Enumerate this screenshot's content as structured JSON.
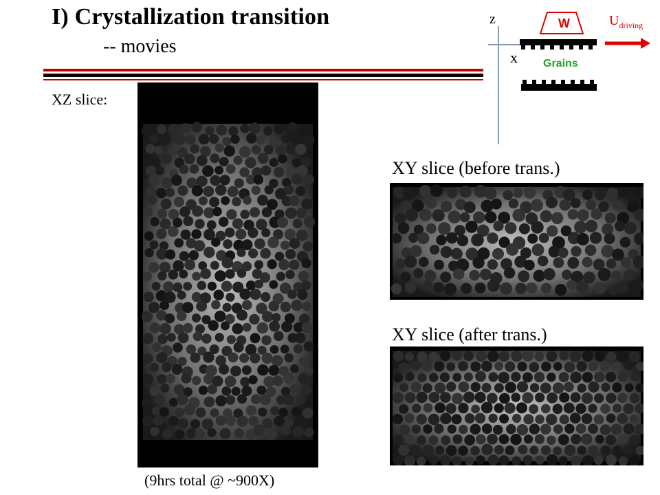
{
  "slide": {
    "title": "I) Crystallization transition",
    "subtitle": "-- movies",
    "xz_label": "XZ slice:",
    "xy_before_label": "XY slice (before trans.)",
    "xy_after_label": "XY slice (after trans.)",
    "footnote": "(9hrs total @ ~900X)"
  },
  "schematic": {
    "z_axis": "z",
    "x_axis": "x",
    "wall": "W",
    "grains": "Grains",
    "driving_main": "U",
    "driving_sub": "driving",
    "colors": {
      "arrow": "#e00000",
      "grains": "#2aa02a",
      "wall": "#e00000"
    }
  },
  "colors": {
    "rule_red": "#c00000",
    "rule_dark": "#1a0000"
  }
}
